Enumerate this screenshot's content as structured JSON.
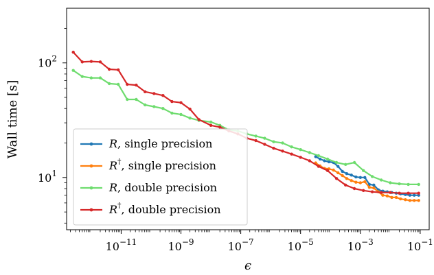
{
  "chart_data": {
    "type": "line",
    "xlabel": "ϵ",
    "ylabel": "Wall time [s]",
    "xscale": "log",
    "yscale": "log",
    "xlim": [
      1.5e-13,
      0.2
    ],
    "ylim": [
      3.5,
      300
    ],
    "xticks": [
      {
        "value": 1e-11,
        "base": "10",
        "exp": "−11"
      },
      {
        "value": 1e-09,
        "base": "10",
        "exp": "−9"
      },
      {
        "value": 1e-07,
        "base": "10",
        "exp": "−7"
      },
      {
        "value": 1e-05,
        "base": "10",
        "exp": "−5"
      },
      {
        "value": 0.001,
        "base": "10",
        "exp": "−3"
      },
      {
        "value": 0.1,
        "base": "10",
        "exp": "−1"
      }
    ],
    "yticks": [
      {
        "value": 10,
        "base": "10",
        "exp": "1"
      },
      {
        "value": 100,
        "base": "10",
        "exp": "2"
      }
    ],
    "grid": false,
    "legend_position": "lower-left",
    "series": [
      {
        "name_symbol": "R",
        "name_sup": "",
        "name_text": ", single precision",
        "color": "#1f77b4",
        "points": [
          [
            3.2e-05,
            15.2
          ],
          [
            4.5e-05,
            14.5
          ],
          [
            6.3e-05,
            14.0
          ],
          [
            8.9e-05,
            13.7
          ],
          [
            0.000126,
            13.5
          ],
          [
            0.000178,
            12.5
          ],
          [
            0.00025,
            11.3
          ],
          [
            0.00035,
            10.8
          ],
          [
            0.0005,
            10.5
          ],
          [
            0.00071,
            10.1
          ],
          [
            0.001,
            10.0
          ],
          [
            0.00141,
            10.0
          ],
          [
            0.002,
            8.7
          ],
          [
            0.0028,
            8.6
          ],
          [
            0.004,
            7.8
          ],
          [
            0.0056,
            7.6
          ],
          [
            0.0079,
            7.5
          ],
          [
            0.0112,
            7.4
          ],
          [
            0.0158,
            7.3
          ],
          [
            0.022,
            7.2
          ],
          [
            0.032,
            7.1
          ],
          [
            0.045,
            7.0
          ],
          [
            0.063,
            7.0
          ],
          [
            0.089,
            7.0
          ]
        ]
      },
      {
        "name_symbol": "R",
        "name_sup": "†",
        "name_text": ", single precision",
        "color": "#ff7f0e",
        "points": [
          [
            3.2e-05,
            13.4
          ],
          [
            4.5e-05,
            12.6
          ],
          [
            6.3e-05,
            12.0
          ],
          [
            8.9e-05,
            11.9
          ],
          [
            0.000126,
            11.6
          ],
          [
            0.000178,
            11.0
          ],
          [
            0.00025,
            10.4
          ],
          [
            0.00035,
            9.8
          ],
          [
            0.0005,
            9.4
          ],
          [
            0.00071,
            9.1
          ],
          [
            0.001,
            9.0
          ],
          [
            0.00141,
            9.2
          ],
          [
            0.002,
            8.2
          ],
          [
            0.0028,
            8.1
          ],
          [
            0.004,
            7.5
          ],
          [
            0.0056,
            7.0
          ],
          [
            0.0079,
            6.9
          ],
          [
            0.0112,
            6.7
          ],
          [
            0.0158,
            6.7
          ],
          [
            0.022,
            6.5
          ],
          [
            0.032,
            6.4
          ],
          [
            0.045,
            6.3
          ],
          [
            0.063,
            6.3
          ],
          [
            0.089,
            6.3
          ]
        ]
      },
      {
        "name_symbol": "R",
        "name_sup": "",
        "name_text": ", double precision",
        "color": "#6edc6e",
        "points": [
          [
            2.5e-13,
            86
          ],
          [
            5e-13,
            76
          ],
          [
            1e-12,
            74
          ],
          [
            2e-12,
            74
          ],
          [
            4e-12,
            66
          ],
          [
            8e-12,
            65
          ],
          [
            1.6e-11,
            48
          ],
          [
            3.2e-11,
            48
          ],
          [
            6.3e-11,
            43
          ],
          [
            1.26e-10,
            41.5
          ],
          [
            2.5e-10,
            40
          ],
          [
            5e-10,
            36.5
          ],
          [
            1e-09,
            35.5
          ],
          [
            2e-09,
            33
          ],
          [
            4e-09,
            31.5
          ],
          [
            1e-08,
            30.5
          ],
          [
            2e-08,
            28.5
          ],
          [
            4e-08,
            26
          ],
          [
            8e-08,
            25.5
          ],
          [
            1.6e-07,
            24
          ],
          [
            3.2e-07,
            23
          ],
          [
            6.3e-07,
            22
          ],
          [
            1.26e-06,
            20.5
          ],
          [
            2.5e-06,
            20
          ],
          [
            5e-06,
            18.5
          ],
          [
            1e-05,
            17.5
          ],
          [
            2e-05,
            16.5
          ],
          [
            4e-05,
            15.5
          ],
          [
            8e-05,
            14.5
          ],
          [
            0.00016,
            13.5
          ],
          [
            0.00032,
            13
          ],
          [
            0.00063,
            13.5
          ],
          [
            0.00126,
            11.5
          ],
          [
            0.0025,
            10.2
          ],
          [
            0.005,
            9.5
          ],
          [
            0.01,
            9.0
          ],
          [
            0.02,
            8.8
          ],
          [
            0.04,
            8.7
          ],
          [
            0.089,
            8.7
          ]
        ]
      },
      {
        "name_symbol": "R",
        "name_sup": "†",
        "name_text": ", double precision",
        "color": "#d62728",
        "points": [
          [
            2.5e-13,
            124
          ],
          [
            5e-13,
            102
          ],
          [
            1e-12,
            103
          ],
          [
            2e-12,
            102
          ],
          [
            4e-12,
            88
          ],
          [
            8e-12,
            87
          ],
          [
            1.6e-11,
            65
          ],
          [
            3.2e-11,
            64
          ],
          [
            6.3e-11,
            56
          ],
          [
            1.26e-10,
            54
          ],
          [
            2.5e-10,
            52
          ],
          [
            5e-10,
            46
          ],
          [
            1e-09,
            45
          ],
          [
            2e-09,
            39.5
          ],
          [
            4e-09,
            32
          ],
          [
            1e-08,
            28.5
          ],
          [
            2e-08,
            27.5
          ],
          [
            4e-08,
            25.5
          ],
          [
            8e-08,
            24
          ],
          [
            1.6e-07,
            22
          ],
          [
            3.2e-07,
            21
          ],
          [
            6.3e-07,
            19.5
          ],
          [
            1.26e-06,
            18
          ],
          [
            2.5e-06,
            17
          ],
          [
            5e-06,
            16
          ],
          [
            1e-05,
            15
          ],
          [
            2e-05,
            14
          ],
          [
            4e-05,
            12.5
          ],
          [
            8e-05,
            11.5
          ],
          [
            0.00016,
            9.8
          ],
          [
            0.00032,
            8.6
          ],
          [
            0.00063,
            8.0
          ],
          [
            0.00126,
            7.7
          ],
          [
            0.0025,
            7.5
          ],
          [
            0.005,
            7.4
          ],
          [
            0.01,
            7.4
          ],
          [
            0.02,
            7.3
          ],
          [
            0.04,
            7.3
          ],
          [
            0.089,
            7.3
          ]
        ]
      }
    ]
  }
}
